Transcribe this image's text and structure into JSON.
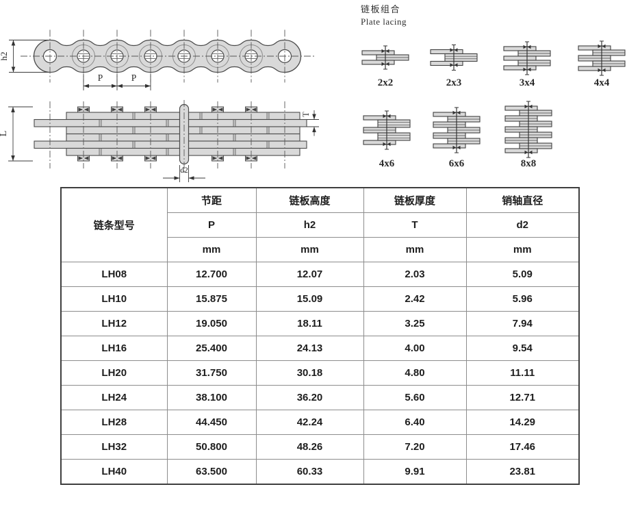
{
  "page": {
    "background": "#ffffff"
  },
  "colors": {
    "plate_fill": "#d9d9d9",
    "drawing_line": "#4a4a4a",
    "centerline": "#555555",
    "table_border_outer": "#3e3e3e",
    "table_border_inner": "#8c8c8c",
    "text": "#1d1d1d"
  },
  "drawings": {
    "side_view": {
      "description": "leaf chain side view, 8 pins",
      "labels": {
        "height": "h2",
        "pitch": "P"
      }
    },
    "plan_view": {
      "description": "leaf chain plate stack plan view",
      "labels": {
        "length": "L",
        "thickness": "T",
        "pin_diameter": "d2"
      }
    }
  },
  "lacing": {
    "title_cn": "链板组合",
    "title_en": "Plate lacing",
    "items": [
      {
        "label": "2x2",
        "pattern": [
          [
            "L",
            1
          ],
          [
            "R",
            2
          ],
          [
            "L",
            1
          ]
        ]
      },
      {
        "label": "2x3",
        "pattern": [
          [
            "L",
            1
          ],
          [
            "R",
            3
          ],
          [
            "L",
            1
          ]
        ]
      },
      {
        "label": "3x4",
        "pattern": [
          [
            "L",
            1
          ],
          [
            "R",
            2
          ],
          [
            "L",
            1
          ],
          [
            "R",
            2
          ],
          [
            "L",
            1
          ]
        ]
      },
      {
        "label": "4x4",
        "pattern": [
          [
            "L",
            1
          ],
          [
            "R",
            2
          ],
          [
            "L",
            2
          ],
          [
            "R",
            2
          ],
          [
            "L",
            1
          ]
        ]
      },
      {
        "label": "4x6",
        "pattern": [
          [
            "L",
            1
          ],
          [
            "R",
            3
          ],
          [
            "L",
            2
          ],
          [
            "R",
            3
          ],
          [
            "L",
            1
          ]
        ]
      },
      {
        "label": "6x6",
        "pattern": [
          [
            "L",
            1
          ],
          [
            "R",
            2
          ],
          [
            "L",
            2
          ],
          [
            "R",
            2
          ],
          [
            "L",
            2
          ],
          [
            "R",
            2
          ],
          [
            "L",
            1
          ]
        ]
      },
      {
        "label": "8x8",
        "pattern": [
          [
            "L",
            1
          ],
          [
            "R",
            2
          ],
          [
            "L",
            2
          ],
          [
            "R",
            2
          ],
          [
            "L",
            2
          ],
          [
            "R",
            2
          ],
          [
            "L",
            2
          ],
          [
            "R",
            2
          ],
          [
            "L",
            1
          ]
        ]
      }
    ]
  },
  "table": {
    "model_header": "链条型号",
    "columns": [
      {
        "name": "节距",
        "symbol": "P",
        "unit": "mm"
      },
      {
        "name": "链板高度",
        "symbol": "h2",
        "unit": "mm"
      },
      {
        "name": "链板厚度",
        "symbol": "T",
        "unit": "mm"
      },
      {
        "name": "销轴直径",
        "symbol": "d2",
        "unit": "mm"
      }
    ],
    "rows": [
      {
        "model": "LH08",
        "values": [
          "12.700",
          "12.07",
          "2.03",
          "5.09"
        ]
      },
      {
        "model": "LH10",
        "values": [
          "15.875",
          "15.09",
          "2.42",
          "5.96"
        ]
      },
      {
        "model": "LH12",
        "values": [
          "19.050",
          "18.11",
          "3.25",
          "7.94"
        ]
      },
      {
        "model": "LH16",
        "values": [
          "25.400",
          "24.13",
          "4.00",
          "9.54"
        ]
      },
      {
        "model": "LH20",
        "values": [
          "31.750",
          "30.18",
          "4.80",
          "11.11"
        ]
      },
      {
        "model": "LH24",
        "values": [
          "38.100",
          "36.20",
          "5.60",
          "12.71"
        ]
      },
      {
        "model": "LH28",
        "values": [
          "44.450",
          "42.24",
          "6.40",
          "14.29"
        ]
      },
      {
        "model": "LH32",
        "values": [
          "50.800",
          "48.26",
          "7.20",
          "17.46"
        ]
      },
      {
        "model": "LH40",
        "values": [
          "63.500",
          "60.33",
          "9.91",
          "23.81"
        ]
      }
    ]
  }
}
